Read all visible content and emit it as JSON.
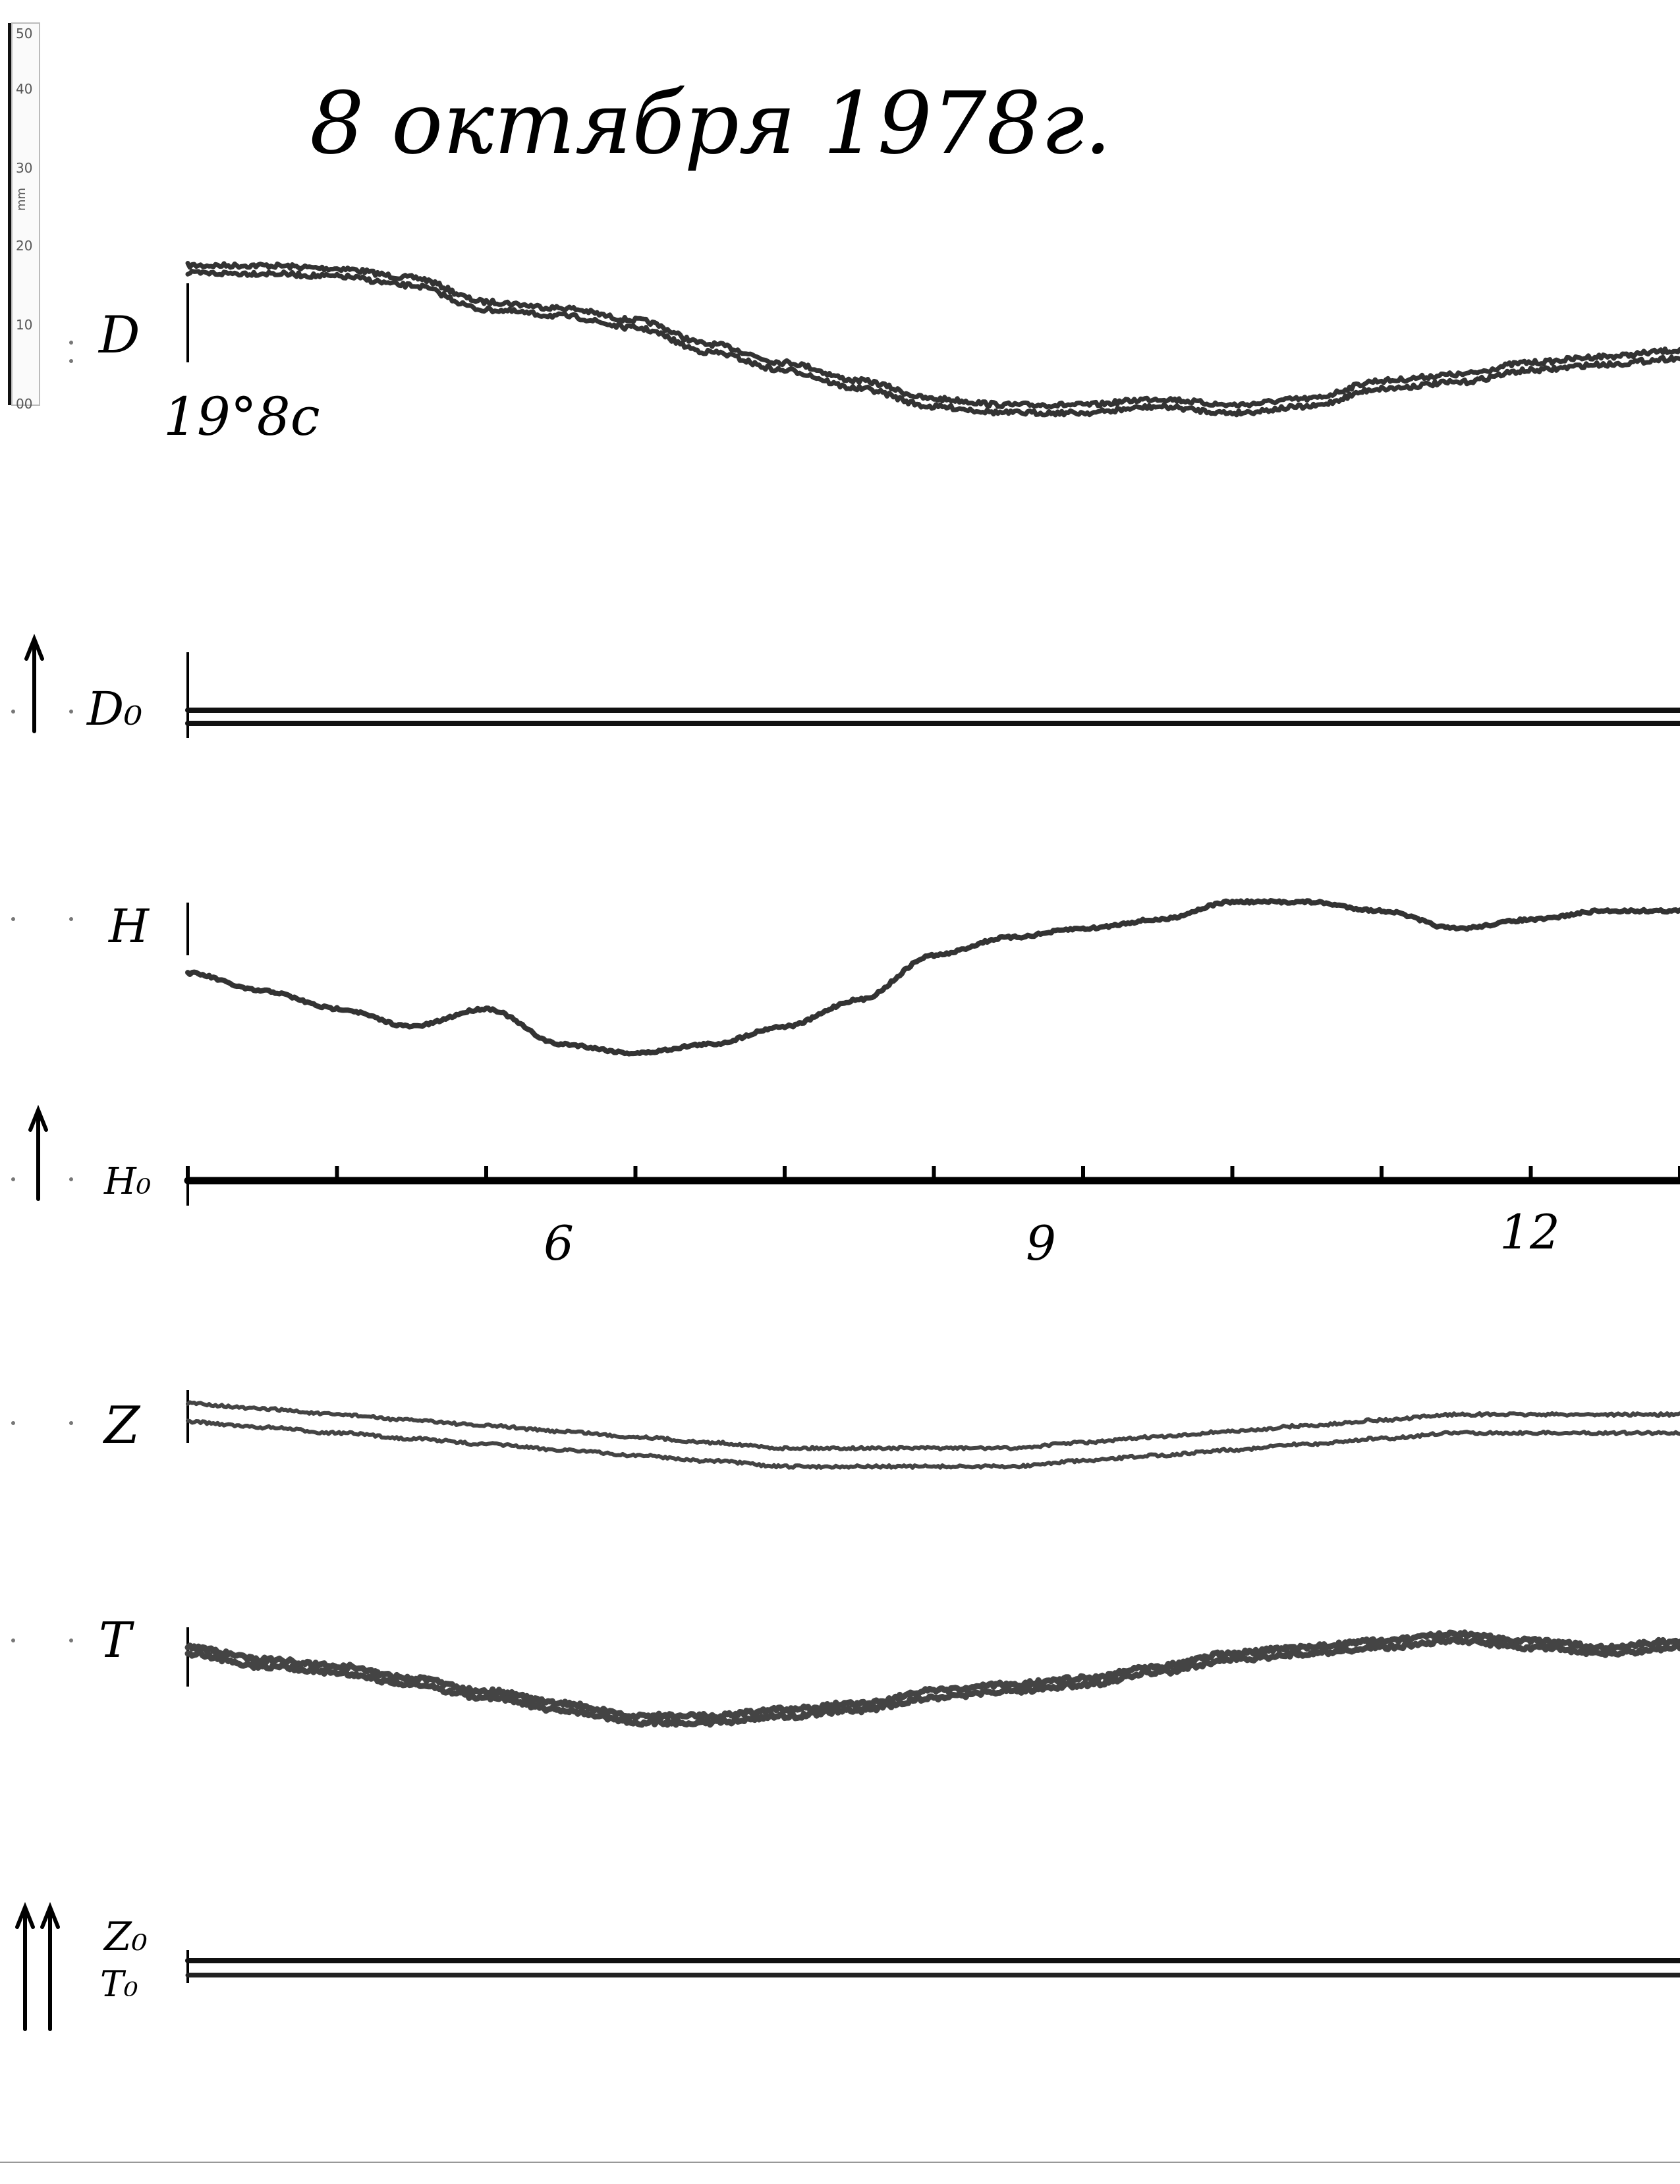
{
  "title": "8 октября 1978г.",
  "scale": {
    "unit": "mm",
    "ticks": [
      "50",
      "40",
      "30",
      "20",
      "10",
      "00"
    ]
  },
  "chart_data": {
    "type": "line",
    "title": "8 октября 1978г.",
    "xlabel": "",
    "ylabel": "",
    "x_tick_labels": [
      "6",
      "9",
      "12"
    ],
    "baseline_annotation": "19°8c",
    "channel_labels": [
      "D",
      "D₀",
      "H",
      "H₀",
      "Z",
      "T",
      "Z₀",
      "T₀"
    ],
    "x": [
      3.3,
      3.8,
      4.3,
      4.8,
      5.3,
      5.8,
      6.3,
      6.8,
      7.3,
      7.8,
      8.3,
      8.8,
      9.3,
      9.8,
      10.3,
      10.8,
      11.3,
      11.8,
      12.3,
      12.8,
      13.3
    ],
    "series": [
      {
        "name": "D",
        "values": [
          10,
          10,
          9.5,
          8,
          4,
          3,
          1,
          -3,
          -6,
          -9,
          -12,
          -13,
          -13,
          -12,
          -13,
          -12,
          -9,
          -8,
          -6,
          -5,
          -4
        ]
      },
      {
        "name": "D₀",
        "values": [
          0,
          0,
          0,
          0,
          0,
          0,
          0,
          0,
          0,
          0,
          0,
          0,
          0,
          0,
          0,
          0,
          0,
          0,
          0,
          0,
          0
        ]
      },
      {
        "name": "H",
        "values": [
          -2,
          -4,
          -6,
          -8,
          -6,
          -10,
          -11,
          -10,
          -8,
          -5,
          0,
          2,
          3,
          4,
          6,
          6,
          5,
          3,
          4,
          5,
          5
        ]
      },
      {
        "name": "H₀",
        "values": [
          0,
          0,
          0,
          0,
          0,
          0,
          0,
          0,
          0,
          0,
          0,
          0,
          0,
          0,
          0,
          0,
          0,
          0,
          0,
          0,
          0
        ]
      },
      {
        "name": "Z",
        "values": [
          0,
          -0.5,
          -1,
          -1.5,
          -2,
          -2.5,
          -3,
          -3.5,
          -4,
          -4,
          -4,
          -4,
          -3.5,
          -3,
          -2.5,
          -2,
          -1.5,
          -1,
          -1,
          -1,
          -1
        ]
      },
      {
        "name": "T",
        "values": [
          0,
          -2,
          -3,
          -5,
          -7,
          -9,
          -11,
          -11,
          -10,
          -9,
          -7,
          -6,
          -5,
          -3,
          -1,
          0,
          1,
          2,
          1,
          0,
          1
        ]
      },
      {
        "name": "Z₀",
        "values": [
          0,
          0,
          0,
          0,
          0,
          0,
          0,
          0,
          0,
          0,
          0,
          0,
          0,
          0,
          0,
          0,
          0,
          0,
          0,
          0,
          0
        ]
      },
      {
        "name": "T₀",
        "values": [
          0,
          0,
          0,
          0,
          0,
          0,
          0,
          0,
          0,
          0,
          0,
          0,
          0,
          0,
          0,
          0,
          0,
          0,
          0,
          0,
          0
        ]
      }
    ],
    "hour_marks": [
      3.3,
      4.3,
      5.3,
      6.3,
      7.3,
      8.3,
      9.3,
      10.3,
      11.3,
      12.3,
      13.3
    ],
    "grid": false,
    "legend": "none"
  }
}
